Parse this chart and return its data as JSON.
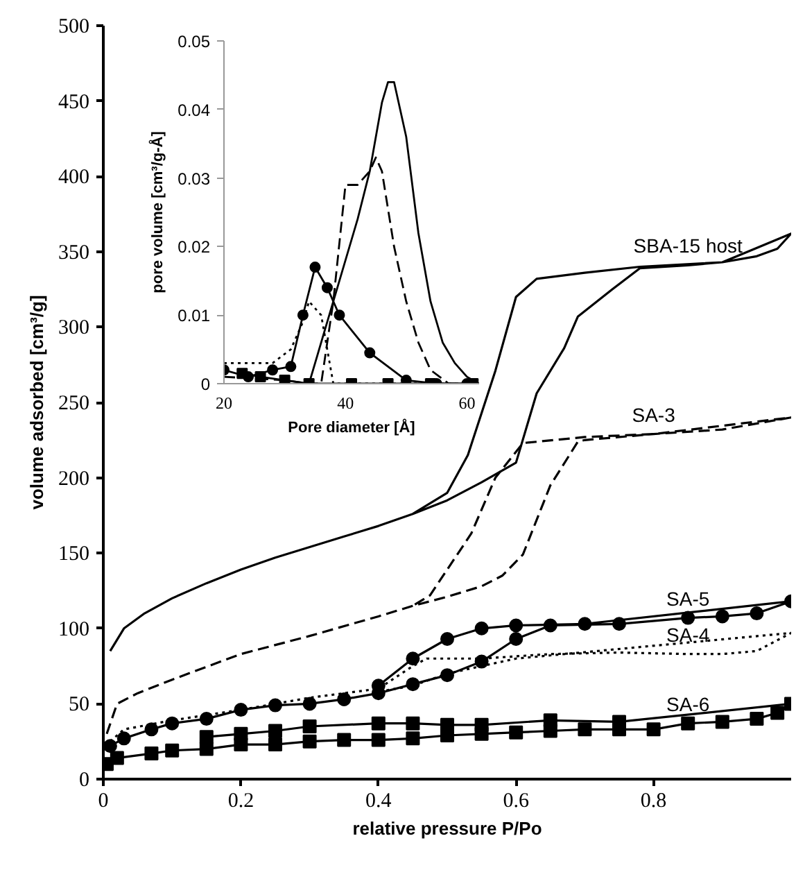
{
  "chart_data": [
    {
      "type": "line",
      "xlabel": "relative pressure P/Po",
      "ylabel": "volume adsorbed [cm³/g]",
      "xlim": [
        0,
        1
      ],
      "ylim": [
        0,
        500
      ],
      "xticks": [
        0,
        0.2,
        0.4,
        0.6,
        0.8
      ],
      "yticks": [
        0,
        50,
        100,
        150,
        200,
        250,
        300,
        350,
        400,
        450,
        500
      ],
      "grid": false,
      "series": [
        {
          "name": "SBA-15 host",
          "color": "#000000",
          "line_style": "solid",
          "marker": "none",
          "x": [
            0.01,
            0.03,
            0.06,
            0.1,
            0.15,
            0.2,
            0.25,
            0.3,
            0.35,
            0.4,
            0.45,
            0.5,
            0.55,
            0.6,
            0.63,
            0.67,
            0.69,
            0.74,
            0.78,
            0.85,
            0.9,
            0.95,
            0.98,
            1.0,
            0.9,
            0.78,
            0.7,
            0.63,
            0.6,
            0.57,
            0.53,
            0.5,
            0.45
          ],
          "values": [
            85,
            100,
            110,
            120,
            130,
            139,
            147,
            154,
            161,
            168,
            176,
            185,
            197,
            210,
            256,
            286,
            307,
            325,
            339,
            341,
            343,
            347,
            352,
            362,
            343,
            340,
            336,
            332,
            320,
            271,
            215,
            190,
            176
          ]
        },
        {
          "name": "SA-3",
          "color": "#000000",
          "line_style": "dashed",
          "marker": "none",
          "x": [
            0.005,
            0.02,
            0.05,
            0.1,
            0.2,
            0.3,
            0.4,
            0.45,
            0.5,
            0.55,
            0.58,
            0.61,
            0.65,
            0.69,
            0.7,
            0.8,
            0.9,
            1.0,
            0.8,
            0.7,
            0.61,
            0.57,
            0.535,
            0.475,
            0.45
          ],
          "values": [
            30,
            50,
            57,
            66,
            83,
            95,
            108,
            115,
            121,
            128,
            135,
            149,
            195,
            224,
            225,
            229,
            232,
            240,
            229,
            227,
            223,
            200,
            163,
            122,
            115
          ]
        },
        {
          "name": "SA-5",
          "color": "#000000",
          "line_style": "solid",
          "marker": "circle",
          "x": [
            0.01,
            0.03,
            0.07,
            0.1,
            0.15,
            0.2,
            0.25,
            0.3,
            0.35,
            0.4,
            0.45,
            0.5,
            0.55,
            0.6,
            0.65,
            0.75,
            0.85,
            0.9,
            0.95,
            1.0,
            0.7,
            0.6,
            0.55,
            0.5,
            0.45,
            0.4
          ],
          "values": [
            22,
            27,
            33,
            37,
            40,
            46,
            49,
            50,
            53,
            57,
            63,
            69,
            78,
            93,
            102,
            103,
            107,
            108,
            110,
            118,
            103,
            102,
            100,
            93,
            80,
            62
          ]
        },
        {
          "name": "SA-4",
          "color": "#000000",
          "line_style": "dotted",
          "marker": "none",
          "x": [
            0.01,
            0.03,
            0.1,
            0.2,
            0.3,
            0.4,
            0.45,
            0.47,
            0.55,
            0.65,
            0.75,
            0.85,
            0.9,
            0.95,
            1.0,
            0.6,
            0.5,
            0.45,
            0.4
          ],
          "values": [
            25,
            33,
            39,
            46,
            54,
            60,
            75,
            80,
            80,
            83,
            84,
            83,
            83,
            85,
            97,
            80,
            70,
            62,
            58
          ]
        },
        {
          "name": "SA-6",
          "color": "#000000",
          "line_style": "solid",
          "marker": "square",
          "x": [
            0.005,
            0.02,
            0.07,
            0.1,
            0.15,
            0.2,
            0.25,
            0.3,
            0.35,
            0.4,
            0.45,
            0.5,
            0.55,
            0.6,
            0.65,
            0.7,
            0.75,
            0.8,
            0.85,
            0.9,
            0.95,
            0.98,
            1.0,
            0.75,
            0.65,
            0.55,
            0.5,
            0.45,
            0.4,
            0.3,
            0.25,
            0.2,
            0.15
          ],
          "values": [
            10,
            14,
            17,
            19,
            20,
            23,
            23,
            25,
            26,
            26,
            27,
            29,
            30,
            31,
            32,
            33,
            33,
            33,
            37,
            38,
            40,
            44,
            50,
            38,
            39,
            36,
            36,
            37,
            37,
            35,
            32,
            30,
            28
          ]
        }
      ]
    },
    {
      "type": "line",
      "xlabel": "Pore diameter [Å]",
      "ylabel": "pore volume [cm³/g-Å]",
      "xlim": [
        20,
        62
      ],
      "ylim": [
        0,
        0.05
      ],
      "xticks": [
        20,
        40,
        60
      ],
      "yticks": [
        0,
        0.01,
        0.02,
        0.03,
        0.04,
        0.05
      ],
      "grid": false,
      "series": [
        {
          "color": "#000000",
          "line_style": "solid",
          "marker": "none",
          "x": [
            34,
            36,
            38,
            40,
            42,
            44,
            46,
            47,
            48,
            50,
            52,
            54,
            56,
            58,
            60,
            62
          ],
          "values": [
            0,
            0.006,
            0.012,
            0.018,
            0.024,
            0.031,
            0.041,
            0.044,
            0.044,
            0.036,
            0.022,
            0.012,
            0.006,
            0.003,
            0.001,
            0
          ]
        },
        {
          "color": "#000000",
          "line_style": "dashed",
          "marker": "none",
          "x": [
            20,
            30,
            34,
            36,
            38,
            40,
            42,
            44,
            45,
            46,
            48,
            50,
            52,
            54,
            57,
            60
          ],
          "values": [
            0.001,
            0.0005,
            0,
            0,
            0.012,
            0.029,
            0.029,
            0.031,
            0.033,
            0.031,
            0.02,
            0.012,
            0.006,
            0.002,
            0,
            0
          ]
        },
        {
          "color": "#000000",
          "line_style": "solid",
          "marker": "circle",
          "x": [
            20,
            24,
            28,
            31,
            33,
            35,
            37,
            39,
            44,
            50,
            55,
            60
          ],
          "values": [
            0.002,
            0.001,
            0.002,
            0.0025,
            0.01,
            0.017,
            0.014,
            0.01,
            0.0045,
            0.0005,
            0,
            0
          ]
        },
        {
          "color": "#000000",
          "line_style": "dotted",
          "marker": "none",
          "x": [
            20,
            24,
            28,
            31,
            33,
            34,
            36,
            38,
            40,
            50,
            60
          ],
          "values": [
            0.003,
            0.003,
            0.003,
            0.005,
            0.009,
            0.012,
            0.01,
            0,
            0,
            0,
            0
          ]
        },
        {
          "color": "#000000",
          "line_style": "solid",
          "marker": "square",
          "x": [
            23,
            26,
            30,
            34,
            41,
            47,
            54,
            61
          ],
          "values": [
            0.0015,
            0.001,
            0.0005,
            0,
            0,
            0,
            0,
            0
          ]
        }
      ]
    }
  ]
}
